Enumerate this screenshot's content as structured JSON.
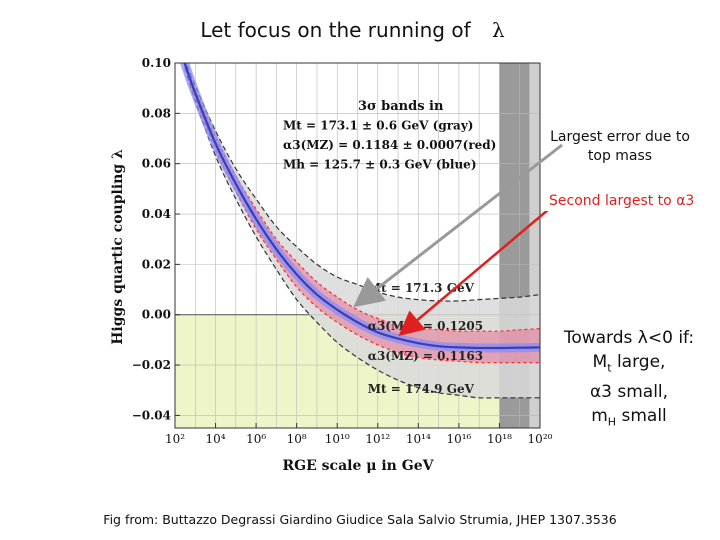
{
  "slide": {
    "title_prefix": "Let focus on the running of",
    "title_symbol": "λ",
    "caption": "Fig from: Buttazzo Degrassi Giardino Giudice Sala Salvio Strumia, JHEP  1307.3536"
  },
  "annotations": {
    "top_error": "Largest error due to top mass",
    "second_prefix": "Second largest to ",
    "second_symbol": "α3",
    "box_line1": "Towards λ<0 if:",
    "box_line2_main": "M",
    "box_line2_sub": "t",
    "box_line2_rest": " large,",
    "box_line3": "α3 small,",
    "box_line4_main": "m",
    "box_line4_sub": "H",
    "box_line4_rest": " small"
  },
  "chart_data": {
    "type": "line",
    "xlabel": "RGE scale μ in GeV",
    "ylabel": "Higgs quartic coupling λ",
    "x_scale": "log",
    "xlim": [
      100,
      1e+20
    ],
    "ylim": [
      -0.045,
      0.1
    ],
    "x_ticks": [
      {
        "value": 100,
        "label": "10²"
      },
      {
        "value": 10000.0,
        "label": "10⁴"
      },
      {
        "value": 1000000.0,
        "label": "10⁶"
      },
      {
        "value": 100000000.0,
        "label": "10⁸"
      },
      {
        "value": 10000000000.0,
        "label": "10¹⁰"
      },
      {
        "value": 1000000000000.0,
        "label": "10¹²"
      },
      {
        "value": 100000000000000.0,
        "label": "10¹⁴"
      },
      {
        "value": 1e+16,
        "label": "10¹⁶"
      },
      {
        "value": 1e+18,
        "label": "10¹⁸"
      },
      {
        "value": 1e+20,
        "label": "10²⁰"
      }
    ],
    "y_ticks": [
      {
        "value": 0.1,
        "label": "0.10"
      },
      {
        "value": 0.08,
        "label": "0.08"
      },
      {
        "value": 0.06,
        "label": "0.06"
      },
      {
        "value": 0.04,
        "label": "0.04"
      },
      {
        "value": 0.02,
        "label": "0.02"
      },
      {
        "value": 0.0,
        "label": "0.00"
      },
      {
        "value": -0.02,
        "label": "−0.02"
      },
      {
        "value": -0.04,
        "label": "−0.04"
      }
    ],
    "legend": {
      "title": "3σ bands in",
      "lines": [
        "Mt = 173.1 ± 0.6 GeV (gray)",
        "α3(MZ) = 0.1184 ± 0.0007(red)",
        "Mh = 125.7 ± 0.3 GeV (blue)"
      ],
      "placement": "top-center"
    },
    "curve_labels": [
      {
        "text": "Mt = 171.3 GeV",
        "anchor": {
          "x": 30000000000000.0,
          "y": 0.009
        }
      },
      {
        "text": "α3(MZ) = 0.1205",
        "anchor": {
          "x": 30000000000000.0,
          "y": -0.006
        }
      },
      {
        "text": "α3(MZ) = 0.1163",
        "anchor": {
          "x": 30000000000000.0,
          "y": -0.018
        }
      },
      {
        "text": "Mt = 174.9 GeV",
        "anchor": {
          "x": 30000000000000.0,
          "y": -0.031
        }
      }
    ],
    "x_grid": [
      100,
      1000,
      10000.0,
      100000.0,
      1000000.0,
      10000000.0,
      100000000.0,
      1000000000.0,
      10000000000.0,
      100000000000.0,
      1000000000000.0,
      10000000000000.0,
      100000000000000.0,
      1000000000000000.0,
      1e+16,
      1e+17,
      1e+18,
      1e+19,
      1e+20
    ],
    "series": [
      {
        "role": "central",
        "x": [
          300,
          1000.0,
          10000.0,
          100000.0,
          1000000.0,
          10000000.0,
          100000000.0,
          1000000000.0,
          10000000000.0,
          100000000000.0,
          1000000000000.0,
          10000000000000.0,
          100000000000000.0,
          1000000000000000.0,
          1e+16,
          1e+17,
          1e+18,
          1e+19,
          1e+20
        ],
        "y": [
          0.1,
          0.088,
          0.068,
          0.052,
          0.038,
          0.026,
          0.016,
          0.008,
          0.002,
          -0.003,
          -0.007,
          -0.0095,
          -0.0113,
          -0.0125,
          -0.013,
          -0.0132,
          -0.0132,
          -0.0131,
          -0.013
        ]
      },
      {
        "role": "gray_upper",
        "x": [
          300,
          1000.0,
          10000.0,
          100000.0,
          1000000.0,
          10000000.0,
          100000000.0,
          1000000000.0,
          10000000000.0,
          100000000000.0,
          1000000000000.0,
          10000000000000.0,
          100000000000000.0,
          1000000000000000.0,
          1e+16,
          1e+17,
          1e+18,
          1e+19,
          1e+20
        ],
        "y": [
          0.102,
          0.091,
          0.073,
          0.058,
          0.046,
          0.035,
          0.027,
          0.02,
          0.015,
          0.012,
          0.009,
          0.007,
          0.006,
          0.0055,
          0.0055,
          0.006,
          0.0065,
          0.007,
          0.008
        ]
      },
      {
        "role": "gray_lower",
        "x": [
          300,
          1000.0,
          10000.0,
          100000.0,
          1000000.0,
          10000000.0,
          100000000.0,
          1000000000.0,
          10000000000.0,
          100000000000.0,
          1000000000000.0,
          10000000000000.0,
          100000000000000.0,
          1000000000000000.0,
          1e+16,
          1e+17,
          1e+18,
          1e+19,
          1e+20
        ],
        "y": [
          0.098,
          0.085,
          0.063,
          0.046,
          0.031,
          0.018,
          0.006,
          -0.003,
          -0.011,
          -0.017,
          -0.022,
          -0.026,
          -0.029,
          -0.031,
          -0.032,
          -0.033,
          -0.033,
          -0.033,
          -0.033
        ]
      },
      {
        "role": "red_upper",
        "x": [
          300,
          1000.0,
          10000.0,
          100000.0,
          1000000.0,
          10000000.0,
          100000000.0,
          1000000000.0,
          10000000000.0,
          100000000000.0,
          1000000000000.0,
          10000000000000.0,
          100000000000000.0,
          1000000000000000.0,
          1e+16,
          1e+17,
          1e+18,
          1e+19,
          1e+20
        ],
        "y": [
          0.101,
          0.0895,
          0.0705,
          0.055,
          0.042,
          0.03,
          0.021,
          0.013,
          0.007,
          0.002,
          -0.0015,
          -0.004,
          -0.005,
          -0.006,
          -0.0065,
          -0.0065,
          -0.0065,
          -0.006,
          -0.0055
        ]
      },
      {
        "role": "red_lower",
        "x": [
          300,
          1000.0,
          10000.0,
          100000.0,
          1000000.0,
          10000000.0,
          100000000.0,
          1000000000.0,
          10000000000.0,
          100000000000.0,
          1000000000000.0,
          10000000000000.0,
          100000000000000.0,
          1000000000000000.0,
          1e+16,
          1e+17,
          1e+18,
          1e+19,
          1e+20
        ],
        "y": [
          0.099,
          0.0865,
          0.0655,
          0.049,
          0.034,
          0.022,
          0.011,
          0.003,
          -0.003,
          -0.008,
          -0.012,
          -0.015,
          -0.017,
          -0.018,
          -0.0185,
          -0.019,
          -0.019,
          -0.019,
          -0.019
        ]
      }
    ],
    "shading": {
      "region_below_zero": "#eef5c8",
      "top_mass_band_outer": [
        1e+18,
        1e+20
      ],
      "top_mass_band_inner": [
        1e+18,
        3e+19
      ]
    },
    "colors": {
      "gray_band": "#d9d9d9",
      "gray_band_edge": "#333333",
      "red_band": "#e85a8a",
      "red_band_edge": "#ff2a2a",
      "blue_band": "#8c8cf0",
      "central": "#3040c0",
      "arrow_gray": "#999999",
      "arrow_red": "#e02020",
      "zero_region": "#eef5c8",
      "vertical_band_light": "#cfcfcf",
      "vertical_band_dark": "#9a9a9a"
    }
  }
}
